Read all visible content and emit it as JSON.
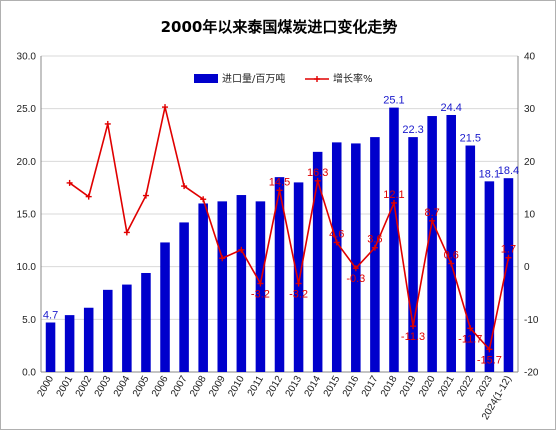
{
  "chart_data": {
    "type": "bar",
    "title": "2000年以来泰国煤炭进口变化走势",
    "categories": [
      "2000",
      "2001",
      "2002",
      "2003",
      "2004",
      "2005",
      "2006",
      "2007",
      "2008",
      "2009",
      "2010",
      "2011",
      "2012",
      "2013",
      "2014",
      "2015",
      "2016",
      "2017",
      "2018",
      "2019",
      "2020",
      "2021",
      "2022",
      "2023",
      "2024(1-12)"
    ],
    "series": [
      {
        "name": "进口量/百万吨",
        "type": "bar",
        "axis": "left",
        "color": "#0000cc",
        "values": [
          4.7,
          5.4,
          6.1,
          7.8,
          8.3,
          9.4,
          12.3,
          14.2,
          16.0,
          16.2,
          16.8,
          16.2,
          18.5,
          18.0,
          20.9,
          21.8,
          21.7,
          22.3,
          25.1,
          22.3,
          24.3,
          24.4,
          21.5,
          18.1,
          18.4
        ]
      },
      {
        "name": "增长率%",
        "type": "line",
        "axis": "right",
        "color": "#e00000",
        "values": [
          null,
          15.9,
          13.3,
          27.1,
          6.5,
          13.5,
          30.3,
          15.3,
          12.8,
          1.6,
          3.2,
          -3.2,
          14.5,
          -3.2,
          16.3,
          4.6,
          -0.3,
          3.6,
          12.1,
          -11.3,
          8.7,
          0.6,
          -11.7,
          -15.7,
          1.7
        ]
      }
    ],
    "bar_labels": [
      {
        "index": 0,
        "text": "4.7"
      },
      {
        "index": 18,
        "text": "25.1"
      },
      {
        "index": 19,
        "text": "22.3"
      },
      {
        "index": 21,
        "text": "24.4"
      },
      {
        "index": 22,
        "text": "21.5"
      },
      {
        "index": 23,
        "text": "18.1"
      },
      {
        "index": 24,
        "text": "18.4"
      }
    ],
    "line_labels": [
      {
        "index": 11,
        "text": "-3.2"
      },
      {
        "index": 12,
        "text": "14.5"
      },
      {
        "index": 13,
        "text": "-3.2"
      },
      {
        "index": 14,
        "text": "16.3"
      },
      {
        "index": 15,
        "text": "4.6"
      },
      {
        "index": 16,
        "text": "-0.3"
      },
      {
        "index": 17,
        "text": "3.6"
      },
      {
        "index": 18,
        "text": "12.1"
      },
      {
        "index": 19,
        "text": "-11.3"
      },
      {
        "index": 20,
        "text": "8.7"
      },
      {
        "index": 21,
        "text": "0.6"
      },
      {
        "index": 22,
        "text": "-11.7"
      },
      {
        "index": 23,
        "text": "-15.7"
      },
      {
        "index": 24,
        "text": "1.7"
      }
    ],
    "y_left": {
      "min": 0,
      "max": 30,
      "step": 5,
      "tick_labels": [
        "0.0",
        "5.0",
        "10.0",
        "15.0",
        "20.0",
        "25.0",
        "30.0"
      ]
    },
    "y_right": {
      "min": -20,
      "max": 40,
      "step": 10,
      "tick_labels": [
        "-20",
        "-10",
        "0",
        "10",
        "20",
        "30",
        "40"
      ]
    },
    "grid": true,
    "legend_position": "top-center"
  }
}
